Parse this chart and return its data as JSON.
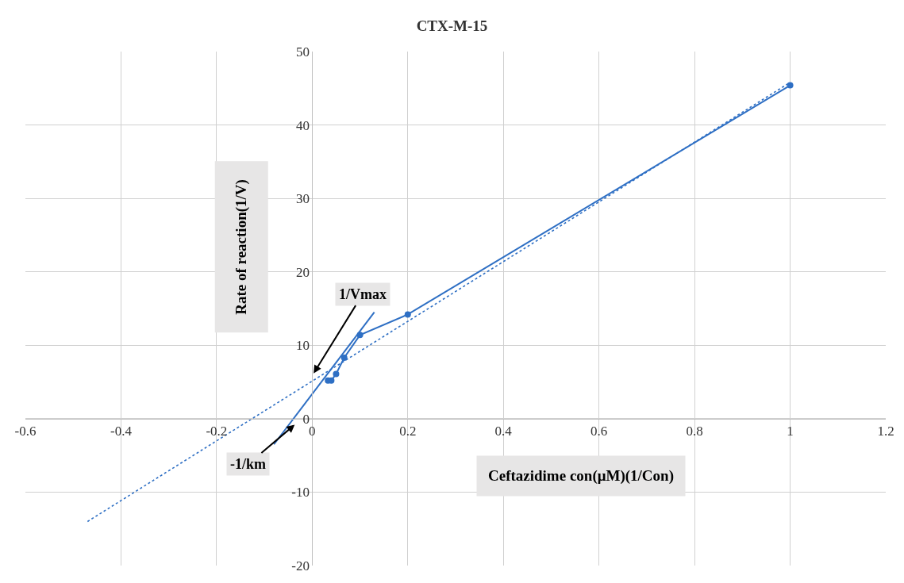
{
  "chart_data": {
    "type": "line",
    "title": "CTX-M-15",
    "xlabel": "Ceftazidime con(μM)(1/Con)",
    "ylabel": "Rate of reaction(1/V)",
    "xlim": [
      -0.6,
      1.2
    ],
    "xticks": [
      -0.6,
      -0.4,
      -0.2,
      0,
      0.2,
      0.4,
      0.6,
      0.8,
      1,
      1.2
    ],
    "ylim": [
      -20,
      50
    ],
    "yticks": [
      -20,
      -10,
      0,
      10,
      20,
      30,
      40,
      50
    ],
    "grid": true,
    "series": [
      {
        "color": "#2e6fc4",
        "x": [
          1,
          0.2,
          0.1,
          0.067,
          0.05,
          0.04,
          0.033
        ],
        "values": [
          45.4,
          14.2,
          11.4,
          8.3,
          6.1,
          5.2,
          5.2
        ],
        "marker": "circle",
        "line_style": "solid"
      },
      {
        "color": "#2e6fc4",
        "x": [
          -0.47,
          1
        ],
        "values": [
          -14,
          45.8
        ],
        "marker": "none",
        "line_style": "dotted"
      },
      {
        "color": "#2e6fc4",
        "x": [
          -0.08,
          0.13
        ],
        "values": [
          -3.5,
          14.5
        ],
        "marker": "none",
        "line_style": "solid"
      }
    ],
    "annotations": [
      "1/Vmax",
      "-1/km"
    ]
  }
}
